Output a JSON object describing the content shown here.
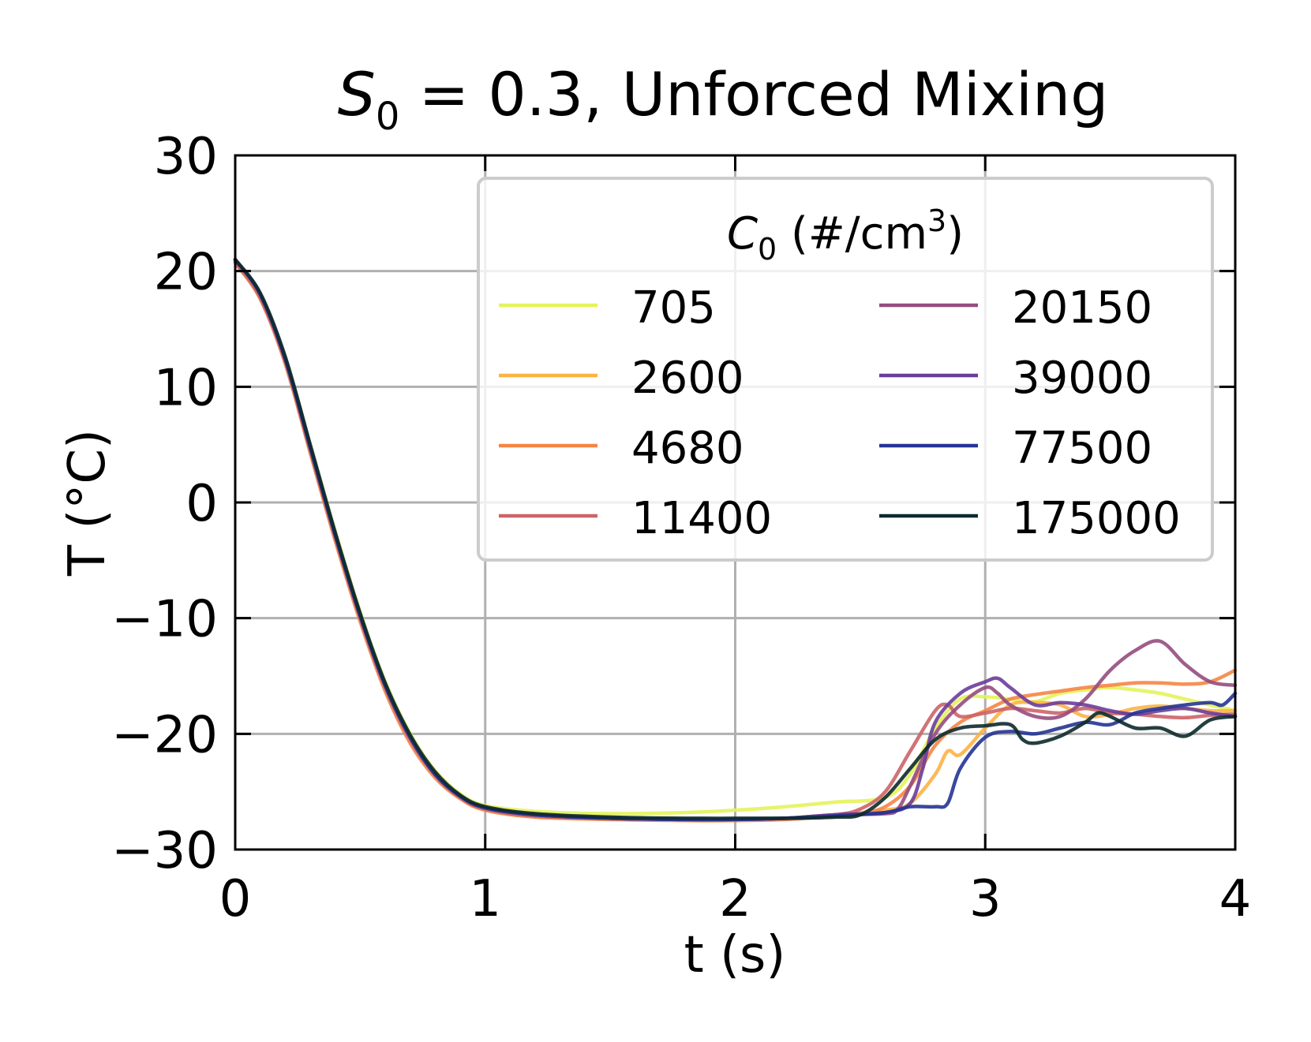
{
  "chart_data": {
    "type": "line",
    "title": {
      "prefix": "S",
      "sub": "0",
      "suffix": " = 0.3, Unforced Mixing"
    },
    "xlabel": "t (s)",
    "ylabel": "T (°C)",
    "xlim": [
      0,
      4
    ],
    "ylim": [
      -30,
      30
    ],
    "xticks": [
      0,
      1,
      2,
      3,
      4
    ],
    "yticks": [
      -30,
      -20,
      -10,
      0,
      10,
      20,
      30
    ],
    "xtick_labels": [
      "0",
      "1",
      "2",
      "3",
      "4"
    ],
    "ytick_labels": [
      "−30",
      "−20",
      "−10",
      "0",
      "10",
      "20",
      "30"
    ],
    "grid": true,
    "legend": {
      "title_prefix": "C",
      "title_sub": "0",
      "title_mid": " (#/cm",
      "title_sup": "3",
      "title_end": ")",
      "placement": "top-right",
      "columns": 2
    },
    "series": [
      {
        "name": "705",
        "color": "#e4f35a",
        "points": [
          [
            0,
            21
          ],
          [
            0.1,
            18
          ],
          [
            0.2,
            12.5
          ],
          [
            0.3,
            5
          ],
          [
            0.4,
            -2.5
          ],
          [
            0.5,
            -9.5
          ],
          [
            0.6,
            -15.5
          ],
          [
            0.7,
            -20
          ],
          [
            0.8,
            -23.2
          ],
          [
            0.9,
            -25.2
          ],
          [
            1.0,
            -26.2
          ],
          [
            1.2,
            -26.7
          ],
          [
            1.5,
            -26.9
          ],
          [
            1.8,
            -26.8
          ],
          [
            2.0,
            -26.6
          ],
          [
            2.2,
            -26.3
          ],
          [
            2.4,
            -25.9
          ],
          [
            2.6,
            -25.5
          ],
          [
            2.7,
            -23.5
          ],
          [
            2.8,
            -19.5
          ],
          [
            2.9,
            -17
          ],
          [
            3.0,
            -16.8
          ],
          [
            3.1,
            -17
          ],
          [
            3.2,
            -17.2
          ],
          [
            3.3,
            -16.5
          ],
          [
            3.4,
            -16.2
          ],
          [
            3.5,
            -16
          ],
          [
            3.6,
            -16.2
          ],
          [
            3.7,
            -16.5
          ],
          [
            3.8,
            -17
          ],
          [
            3.9,
            -17.5
          ],
          [
            4.0,
            -18
          ]
        ]
      },
      {
        "name": "2600",
        "color": "#fcb346",
        "points": [
          [
            0,
            20.8
          ],
          [
            0.1,
            17.8
          ],
          [
            0.2,
            12.2
          ],
          [
            0.3,
            4.6
          ],
          [
            0.4,
            -3
          ],
          [
            0.5,
            -10
          ],
          [
            0.6,
            -16
          ],
          [
            0.7,
            -20.5
          ],
          [
            0.8,
            -23.6
          ],
          [
            0.9,
            -25.5
          ],
          [
            1.0,
            -26.5
          ],
          [
            1.2,
            -27.1
          ],
          [
            1.5,
            -27.3
          ],
          [
            1.8,
            -27.4
          ],
          [
            2.0,
            -27.4
          ],
          [
            2.2,
            -27.3
          ],
          [
            2.4,
            -27
          ],
          [
            2.6,
            -26.6
          ],
          [
            2.7,
            -26
          ],
          [
            2.8,
            -23.5
          ],
          [
            2.85,
            -21.5
          ],
          [
            2.9,
            -21.8
          ],
          [
            3.0,
            -19.5
          ],
          [
            3.1,
            -17.5
          ],
          [
            3.2,
            -17.3
          ],
          [
            3.3,
            -17.5
          ],
          [
            3.4,
            -18.5
          ],
          [
            3.5,
            -18.3
          ],
          [
            3.6,
            -17.8
          ],
          [
            3.7,
            -17.6
          ],
          [
            3.8,
            -17.8
          ],
          [
            3.9,
            -18
          ],
          [
            4.0,
            -18
          ]
        ]
      },
      {
        "name": "4680",
        "color": "#f58545",
        "points": [
          [
            0,
            20.7
          ],
          [
            0.1,
            17.6
          ],
          [
            0.2,
            12
          ],
          [
            0.3,
            4.3
          ],
          [
            0.4,
            -3.3
          ],
          [
            0.5,
            -10.3
          ],
          [
            0.6,
            -16.3
          ],
          [
            0.7,
            -20.8
          ],
          [
            0.8,
            -23.8
          ],
          [
            0.9,
            -25.6
          ],
          [
            1.0,
            -26.6
          ],
          [
            1.2,
            -27.2
          ],
          [
            1.5,
            -27.4
          ],
          [
            1.8,
            -27.5
          ],
          [
            2.0,
            -27.5
          ],
          [
            2.2,
            -27.4
          ],
          [
            2.4,
            -27.1
          ],
          [
            2.5,
            -26.9
          ],
          [
            2.6,
            -26.3
          ],
          [
            2.7,
            -24.5
          ],
          [
            2.8,
            -21
          ],
          [
            2.9,
            -19
          ],
          [
            3.0,
            -18
          ],
          [
            3.1,
            -17
          ],
          [
            3.2,
            -16.6
          ],
          [
            3.3,
            -16.3
          ],
          [
            3.4,
            -16
          ],
          [
            3.5,
            -15.8
          ],
          [
            3.6,
            -15.6
          ],
          [
            3.7,
            -15.6
          ],
          [
            3.8,
            -15.7
          ],
          [
            3.9,
            -15.5
          ],
          [
            4.0,
            -14.5
          ]
        ]
      },
      {
        "name": "11400",
        "color": "#cc6468",
        "points": [
          [
            0,
            20.8
          ],
          [
            0.1,
            17.7
          ],
          [
            0.2,
            12.2
          ],
          [
            0.3,
            4.5
          ],
          [
            0.4,
            -3
          ],
          [
            0.5,
            -10
          ],
          [
            0.6,
            -16
          ],
          [
            0.7,
            -20.5
          ],
          [
            0.8,
            -23.6
          ],
          [
            0.9,
            -25.5
          ],
          [
            1.0,
            -26.5
          ],
          [
            1.2,
            -27.1
          ],
          [
            1.5,
            -27.3
          ],
          [
            1.8,
            -27.4
          ],
          [
            2.0,
            -27.4
          ],
          [
            2.2,
            -27.3
          ],
          [
            2.4,
            -27
          ],
          [
            2.5,
            -26.5
          ],
          [
            2.6,
            -25
          ],
          [
            2.7,
            -21.5
          ],
          [
            2.8,
            -18
          ],
          [
            2.85,
            -17.5
          ],
          [
            2.9,
            -18.5
          ],
          [
            3.0,
            -18.2
          ],
          [
            3.1,
            -17.8
          ],
          [
            3.2,
            -18
          ],
          [
            3.3,
            -18.2
          ],
          [
            3.4,
            -17.8
          ],
          [
            3.5,
            -18.2
          ],
          [
            3.6,
            -18.3
          ],
          [
            3.7,
            -18.5
          ],
          [
            3.8,
            -18.6
          ],
          [
            3.9,
            -18.4
          ],
          [
            4.0,
            -18.3
          ]
        ]
      },
      {
        "name": "20150",
        "color": "#954d7f",
        "points": [
          [
            0,
            21
          ],
          [
            0.1,
            18
          ],
          [
            0.2,
            12.4
          ],
          [
            0.3,
            4.8
          ],
          [
            0.4,
            -2.8
          ],
          [
            0.5,
            -9.8
          ],
          [
            0.6,
            -15.8
          ],
          [
            0.7,
            -20.3
          ],
          [
            0.8,
            -23.5
          ],
          [
            0.9,
            -25.4
          ],
          [
            1.0,
            -26.4
          ],
          [
            1.2,
            -27
          ],
          [
            1.5,
            -27.3
          ],
          [
            1.8,
            -27.4
          ],
          [
            2.0,
            -27.4
          ],
          [
            2.2,
            -27.3
          ],
          [
            2.4,
            -27
          ],
          [
            2.6,
            -26.9
          ],
          [
            2.65,
            -26.5
          ],
          [
            2.7,
            -24.5
          ],
          [
            2.8,
            -20
          ],
          [
            2.9,
            -17.5
          ],
          [
            3.0,
            -16
          ],
          [
            3.05,
            -16.5
          ],
          [
            3.1,
            -17.5
          ],
          [
            3.2,
            -18.5
          ],
          [
            3.3,
            -18.5
          ],
          [
            3.4,
            -17
          ],
          [
            3.5,
            -14.5
          ],
          [
            3.6,
            -12.8
          ],
          [
            3.7,
            -12
          ],
          [
            3.8,
            -14
          ],
          [
            3.9,
            -15.5
          ],
          [
            4.0,
            -15.8
          ]
        ]
      },
      {
        "name": "39000",
        "color": "#6a3d9a",
        "points": [
          [
            0,
            21
          ],
          [
            0.1,
            18
          ],
          [
            0.2,
            12.4
          ],
          [
            0.3,
            4.8
          ],
          [
            0.4,
            -2.8
          ],
          [
            0.5,
            -9.8
          ],
          [
            0.6,
            -15.8
          ],
          [
            0.7,
            -20.3
          ],
          [
            0.8,
            -23.5
          ],
          [
            0.9,
            -25.4
          ],
          [
            1.0,
            -26.4
          ],
          [
            1.2,
            -27
          ],
          [
            1.5,
            -27.3
          ],
          [
            1.8,
            -27.4
          ],
          [
            2.0,
            -27.4
          ],
          [
            2.2,
            -27.3
          ],
          [
            2.4,
            -27
          ],
          [
            2.6,
            -26.8
          ],
          [
            2.7,
            -26
          ],
          [
            2.75,
            -23
          ],
          [
            2.8,
            -19
          ],
          [
            2.9,
            -16.5
          ],
          [
            3.0,
            -15.5
          ],
          [
            3.05,
            -15.2
          ],
          [
            3.1,
            -16
          ],
          [
            3.2,
            -17.5
          ],
          [
            3.3,
            -17.3
          ],
          [
            3.4,
            -17.5
          ],
          [
            3.5,
            -18
          ],
          [
            3.6,
            -18.3
          ],
          [
            3.7,
            -18
          ],
          [
            3.8,
            -17.8
          ],
          [
            3.9,
            -18.2
          ],
          [
            4.0,
            -18.5
          ]
        ]
      },
      {
        "name": "77500",
        "color": "#253494",
        "points": [
          [
            0,
            21
          ],
          [
            0.1,
            18
          ],
          [
            0.2,
            12.4
          ],
          [
            0.3,
            4.8
          ],
          [
            0.4,
            -2.8
          ],
          [
            0.5,
            -9.8
          ],
          [
            0.6,
            -15.8
          ],
          [
            0.7,
            -20.3
          ],
          [
            0.8,
            -23.5
          ],
          [
            0.9,
            -25.4
          ],
          [
            1.0,
            -26.4
          ],
          [
            1.2,
            -27
          ],
          [
            1.5,
            -27.3
          ],
          [
            1.8,
            -27.4
          ],
          [
            2.0,
            -27.4
          ],
          [
            2.2,
            -27.3
          ],
          [
            2.4,
            -27.1
          ],
          [
            2.6,
            -26.8
          ],
          [
            2.7,
            -26.3
          ],
          [
            2.8,
            -26.3
          ],
          [
            2.85,
            -26
          ],
          [
            2.9,
            -23
          ],
          [
            3.0,
            -20.3
          ],
          [
            3.1,
            -19.8
          ],
          [
            3.2,
            -20
          ],
          [
            3.3,
            -19.5
          ],
          [
            3.4,
            -19
          ],
          [
            3.5,
            -19.2
          ],
          [
            3.6,
            -18.2
          ],
          [
            3.7,
            -17.8
          ],
          [
            3.8,
            -17.5
          ],
          [
            3.9,
            -17.3
          ],
          [
            3.95,
            -17.5
          ],
          [
            4.0,
            -16.5
          ]
        ]
      },
      {
        "name": "175000",
        "color": "#0d2a2c",
        "points": [
          [
            0,
            21
          ],
          [
            0.1,
            18.1
          ],
          [
            0.2,
            12.6
          ],
          [
            0.3,
            5
          ],
          [
            0.4,
            -2.6
          ],
          [
            0.5,
            -9.6
          ],
          [
            0.6,
            -15.6
          ],
          [
            0.7,
            -20.1
          ],
          [
            0.8,
            -23.3
          ],
          [
            0.9,
            -25.3
          ],
          [
            1.0,
            -26.3
          ],
          [
            1.2,
            -26.9
          ],
          [
            1.5,
            -27.2
          ],
          [
            1.8,
            -27.3
          ],
          [
            2.0,
            -27.3
          ],
          [
            2.2,
            -27.3
          ],
          [
            2.4,
            -27.2
          ],
          [
            2.5,
            -27
          ],
          [
            2.6,
            -25.5
          ],
          [
            2.7,
            -23
          ],
          [
            2.8,
            -20.5
          ],
          [
            2.9,
            -19.5
          ],
          [
            3.0,
            -19.3
          ],
          [
            3.1,
            -19.2
          ],
          [
            3.15,
            -20.5
          ],
          [
            3.2,
            -20.8
          ],
          [
            3.3,
            -20.2
          ],
          [
            3.4,
            -19
          ],
          [
            3.45,
            -18.2
          ],
          [
            3.5,
            -18.5
          ],
          [
            3.6,
            -19.5
          ],
          [
            3.7,
            -19.5
          ],
          [
            3.8,
            -20.2
          ],
          [
            3.9,
            -18.8
          ],
          [
            4.0,
            -18.5
          ]
        ]
      }
    ]
  }
}
